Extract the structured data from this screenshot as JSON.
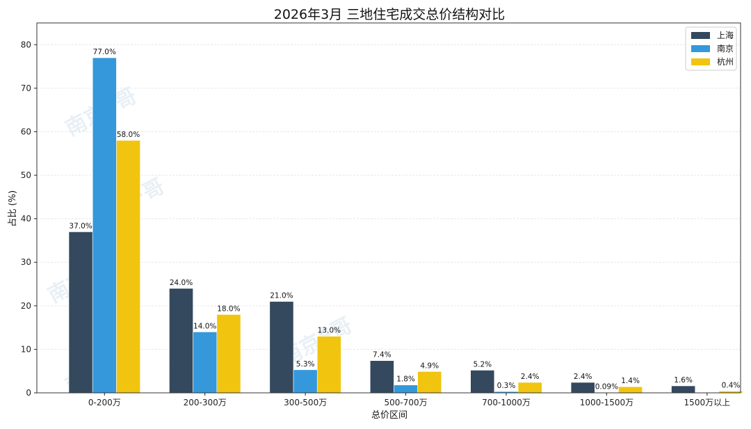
{
  "chart_data": {
    "type": "bar",
    "title": "2026年3月 三地住宅成交总价结构对比",
    "xlabel": "总价区间",
    "ylabel": "占比 (%)",
    "ylim": [
      0,
      85
    ],
    "yticks": [
      0,
      10,
      20,
      30,
      40,
      50,
      60,
      70,
      80
    ],
    "grid": true,
    "legend_position": "top-right",
    "categories": [
      "0-200万",
      "200-300万",
      "300-500万",
      "500-700万",
      "700-1000万",
      "1000-1500万",
      "1500万以上"
    ],
    "series": [
      {
        "name": "上海",
        "color": "#34495e",
        "values": [
          37.0,
          24.0,
          21.0,
          7.4,
          5.2,
          2.4,
          1.6
        ],
        "labels": [
          "37.0%",
          "24.0%",
          "21.0%",
          "7.4%",
          "5.2%",
          "2.4%",
          "1.6%"
        ]
      },
      {
        "name": "南京",
        "color": "#3498db",
        "values": [
          77.0,
          14.0,
          5.3,
          1.8,
          0.3,
          0.09,
          null
        ],
        "labels": [
          "77.0%",
          "14.0%",
          "5.3%",
          "1.8%",
          "0.3%",
          "0.09%",
          null
        ]
      },
      {
        "name": "杭州",
        "color": "#f1c40f",
        "values": [
          58.0,
          18.0,
          13.0,
          4.9,
          2.4,
          1.4,
          0.4
        ],
        "labels": [
          "58.0%",
          "18.0%",
          "13.0%",
          "4.9%",
          "2.4%",
          "1.4%",
          "0.4%"
        ]
      }
    ],
    "watermark": "南京F哥"
  }
}
